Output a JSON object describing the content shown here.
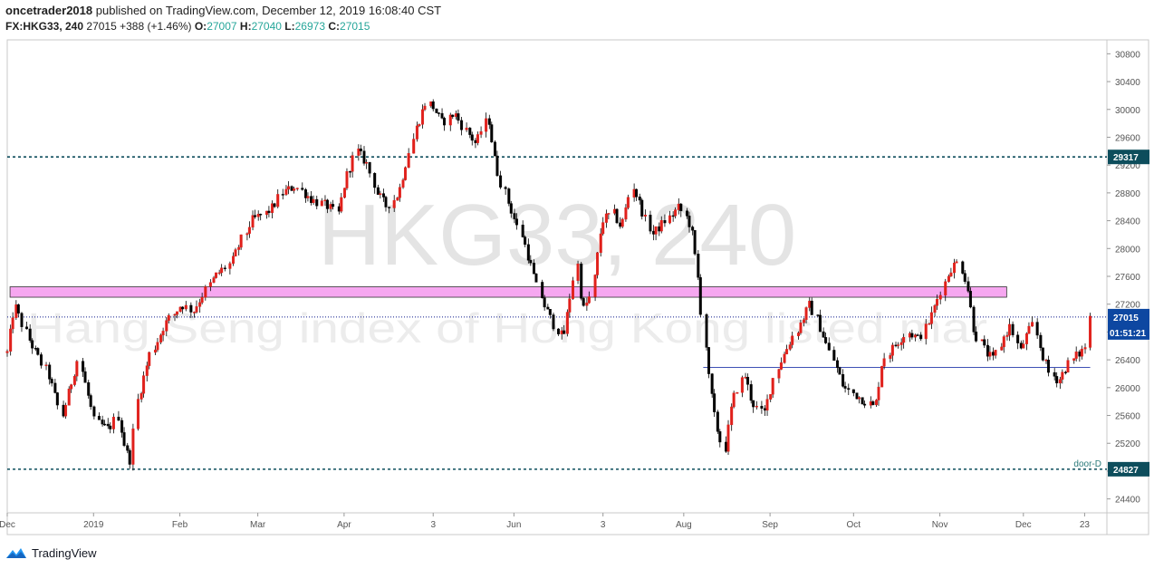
{
  "header": {
    "author": "oncetrader2018",
    "published_text": "published on TradingView.com, December 12, 2019 16:08:40 CST",
    "symbol": "FX:HKG33, 240",
    "last": "27015",
    "change": "+388 (+1.46%)",
    "o_label": "O:",
    "o_value": "27007",
    "h_label": "H:",
    "h_value": "27040",
    "l_label": "L:",
    "l_value": "26973",
    "c_label": "C:",
    "c_value": "27015"
  },
  "watermark": {
    "title": "HKG33, 240",
    "subtitle": "Hang Seng index of Hong Kong listed mar"
  },
  "footer": {
    "brand": "TradingView"
  },
  "colors": {
    "up": "#e0201b",
    "down": "#000000",
    "axis_text": "#555555",
    "level_line": "#0d4d5c",
    "resistance_fill": "#f6a7f0",
    "support_line": "#3f51b5",
    "price_tag": "#0d47a1",
    "price_dotted": "#0d1a8c"
  },
  "chart_data": {
    "type": "candlestick",
    "symbol": "FX:HKG33",
    "timeframe": "240",
    "y_range": [
      24200,
      31000
    ],
    "y_ticks": [
      24400,
      24800,
      25200,
      25600,
      26000,
      26400,
      26800,
      27200,
      27600,
      28000,
      28400,
      28800,
      29200,
      29600,
      30000,
      30400,
      30800
    ],
    "x_labels": [
      "Dec",
      "2019",
      "Feb",
      "Mar",
      "Apr",
      "3",
      "Jun",
      "3",
      "Aug",
      "Sep",
      "Oct",
      "Nov",
      "Dec",
      "23"
    ],
    "x_dates": [
      "2018-12-01",
      "2019-01-01",
      "2019-02-01",
      "2019-03-01",
      "2019-04-01",
      "2019-05-03",
      "2019-06-01",
      "2019-07-03",
      "2019-08-01",
      "2019-09-01",
      "2019-10-01",
      "2019-11-01",
      "2019-12-01",
      "2019-12-23"
    ],
    "date_range": [
      "2018-12-01",
      "2019-12-31"
    ],
    "path_points": [
      [
        "2018-12-01",
        26500
      ],
      [
        "2018-12-04",
        27200
      ],
      [
        "2018-12-09",
        26700
      ],
      [
        "2018-12-16",
        26200
      ],
      [
        "2018-12-21",
        25600
      ],
      [
        "2018-12-27",
        26400
      ],
      [
        "2019-01-02",
        25500
      ],
      [
        "2019-01-07",
        25400
      ],
      [
        "2019-01-10",
        25600
      ],
      [
        "2019-01-13",
        25100
      ],
      [
        "2019-01-15",
        24950
      ],
      [
        "2019-01-17",
        25800
      ],
      [
        "2019-01-22",
        26500
      ],
      [
        "2019-01-27",
        26900
      ],
      [
        "2019-02-02",
        27200
      ],
      [
        "2019-02-06",
        27100
      ],
      [
        "2019-02-14",
        27600
      ],
      [
        "2019-02-20",
        27800
      ],
      [
        "2019-02-27",
        28400
      ],
      [
        "2019-03-04",
        28500
      ],
      [
        "2019-03-07",
        28600
      ],
      [
        "2019-03-10",
        28800
      ],
      [
        "2019-03-15",
        28900
      ],
      [
        "2019-03-21",
        28700
      ],
      [
        "2019-03-27",
        28600
      ],
      [
        "2019-03-30",
        28500
      ],
      [
        "2019-04-02",
        29000
      ],
      [
        "2019-04-06",
        29400
      ],
      [
        "2019-04-10",
        29200
      ],
      [
        "2019-04-13",
        28800
      ],
      [
        "2019-04-17",
        28600
      ],
      [
        "2019-04-21",
        28800
      ],
      [
        "2019-04-27",
        29700
      ],
      [
        "2019-05-01",
        30100
      ],
      [
        "2019-05-03",
        30050
      ],
      [
        "2019-05-07",
        29800
      ],
      [
        "2019-05-11",
        29950
      ],
      [
        "2019-05-15",
        29700
      ],
      [
        "2019-05-19",
        29500
      ],
      [
        "2019-05-23",
        29900
      ],
      [
        "2019-05-26",
        29200
      ],
      [
        "2019-05-30",
        28700
      ],
      [
        "2019-06-04",
        28200
      ],
      [
        "2019-06-08",
        27700
      ],
      [
        "2019-06-12",
        27200
      ],
      [
        "2019-06-16",
        26900
      ],
      [
        "2019-06-19",
        26700
      ],
      [
        "2019-06-24",
        27800
      ],
      [
        "2019-06-26",
        27100
      ],
      [
        "2019-06-29",
        27300
      ],
      [
        "2019-07-03",
        28400
      ],
      [
        "2019-07-07",
        28500
      ],
      [
        "2019-07-10",
        28300
      ],
      [
        "2019-07-14",
        28900
      ],
      [
        "2019-07-17",
        28600
      ],
      [
        "2019-07-21",
        28200
      ],
      [
        "2019-07-26",
        28400
      ],
      [
        "2019-07-31",
        28600
      ],
      [
        "2019-08-04",
        28300
      ],
      [
        "2019-08-07",
        27500
      ],
      [
        "2019-08-10",
        26200
      ],
      [
        "2019-08-13",
        25500
      ],
      [
        "2019-08-16",
        25100
      ],
      [
        "2019-08-19",
        25800
      ],
      [
        "2019-08-23",
        26200
      ],
      [
        "2019-08-26",
        25800
      ],
      [
        "2019-08-30",
        25600
      ],
      [
        "2019-09-04",
        26300
      ],
      [
        "2019-09-08",
        26600
      ],
      [
        "2019-09-12",
        26900
      ],
      [
        "2019-09-16",
        27200
      ],
      [
        "2019-09-20",
        26800
      ],
      [
        "2019-09-24",
        26400
      ],
      [
        "2019-09-28",
        26000
      ],
      [
        "2019-10-02",
        25900
      ],
      [
        "2019-10-06",
        25800
      ],
      [
        "2019-10-09",
        25700
      ],
      [
        "2019-10-12",
        26400
      ],
      [
        "2019-10-16",
        26600
      ],
      [
        "2019-10-21",
        26800
      ],
      [
        "2019-10-25",
        26700
      ],
      [
        "2019-10-29",
        27000
      ],
      [
        "2019-11-02",
        27400
      ],
      [
        "2019-11-05",
        27700
      ],
      [
        "2019-11-08",
        27800
      ],
      [
        "2019-11-11",
        27500
      ],
      [
        "2019-11-14",
        26800
      ],
      [
        "2019-11-18",
        26500
      ],
      [
        "2019-11-21",
        26400
      ],
      [
        "2019-11-24",
        26700
      ],
      [
        "2019-11-27",
        26900
      ],
      [
        "2019-11-30",
        26500
      ],
      [
        "2019-12-02",
        26700
      ],
      [
        "2019-12-05",
        26900
      ],
      [
        "2019-12-08",
        26500
      ],
      [
        "2019-12-11",
        26200
      ],
      [
        "2019-12-14",
        26100
      ],
      [
        "2019-12-17",
        26300
      ],
      [
        "2019-12-20",
        26450
      ],
      [
        "2019-12-22",
        26500
      ],
      [
        "2019-12-24",
        26600
      ],
      [
        "2019-12-25",
        27015
      ]
    ],
    "levels": [
      {
        "name": "upper-level",
        "price": 29317,
        "label": "29317"
      },
      {
        "name": "door-D",
        "price": 24827,
        "label": "24827",
        "text": "door-D"
      }
    ],
    "resistance_zone": {
      "from_date": "2018-12-02",
      "to_date": "2019-11-25",
      "low": 27300,
      "high": 27450
    },
    "support_line": {
      "from_date": "2019-08-08",
      "to_date": "2019-12-25",
      "price": 26290
    },
    "last_price": {
      "price": 27015,
      "label": "27015",
      "countdown": "01:51:21"
    }
  }
}
